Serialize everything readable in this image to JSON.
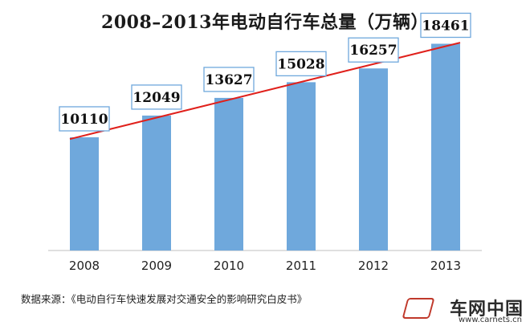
{
  "chart_data": {
    "type": "bar",
    "title": "2008–2013年电动自行车总量（万辆）",
    "categories": [
      "2008",
      "2009",
      "2010",
      "2011",
      "2012",
      "2013"
    ],
    "values": [
      10110,
      12049,
      13627,
      15028,
      16257,
      18461
    ],
    "data_labels": [
      "10110",
      "12049",
      "13627",
      "15028",
      "16257",
      "18461"
    ],
    "ylim": [
      0,
      19500
    ],
    "grid": false,
    "legend": "none",
    "trendline": true,
    "colors": {
      "bar": "#6fa8dc",
      "trendline": "#e0201b",
      "label_border": "#6fa8dc"
    }
  },
  "source_note": "数据来源：《电动自行车快速发展对交通安全的影响研究白皮书》",
  "watermark": {
    "brand": "车网中国",
    "url": "www.carnets.cn"
  }
}
